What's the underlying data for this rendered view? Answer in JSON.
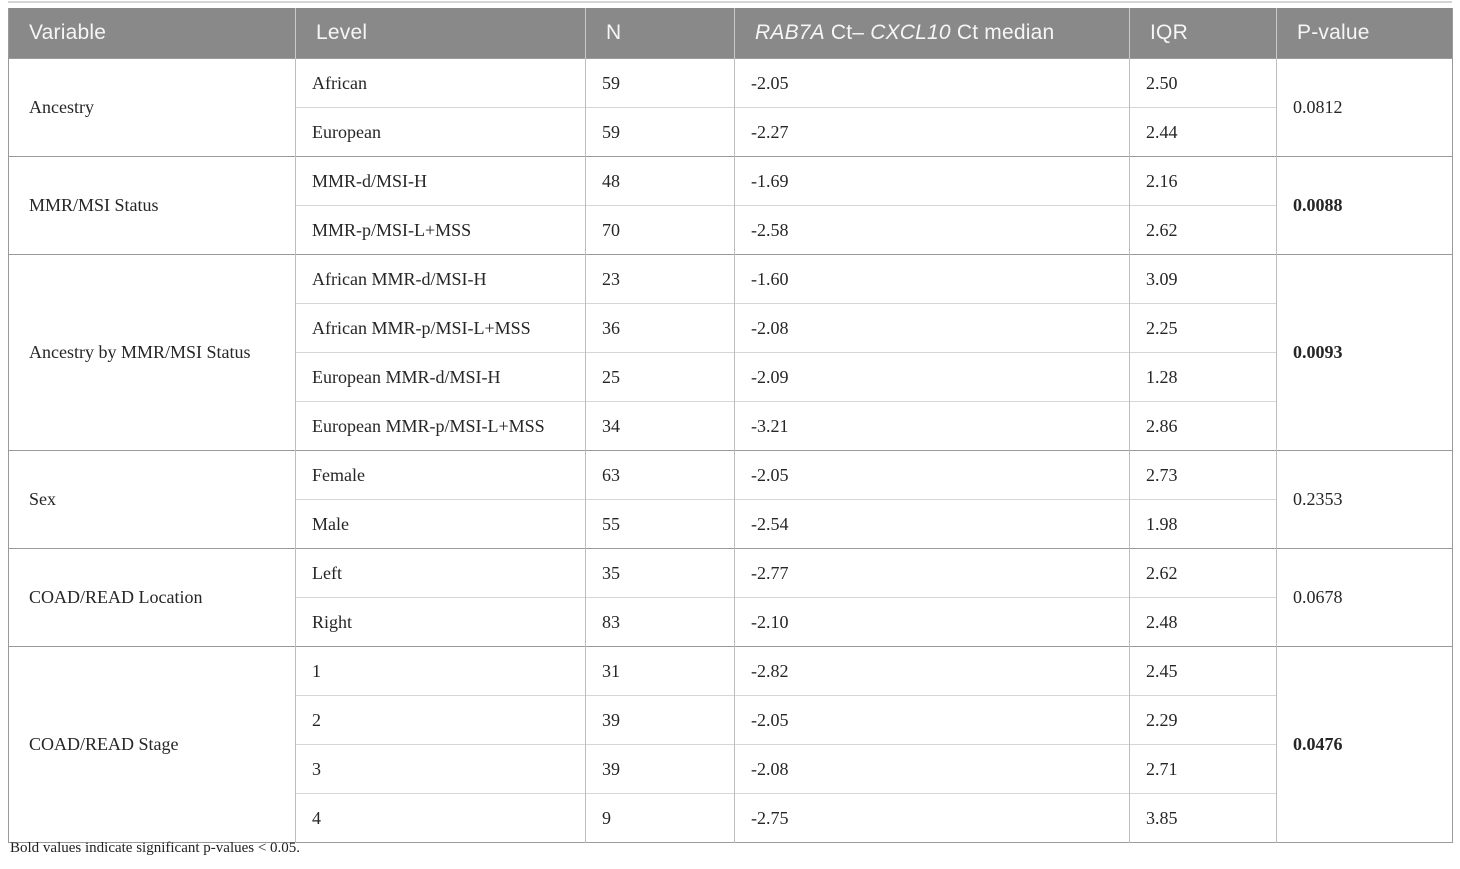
{
  "page": {
    "background": "#ffffff"
  },
  "table": {
    "header": {
      "bg_color": "#898989",
      "text_color": "#f6f6f6",
      "variable": "Variable",
      "level": "Level",
      "n": "N",
      "median_gene1": "RAB7A",
      "median_mid": " Ct– ",
      "median_gene2": "CXCL10",
      "median_tail": " Ct median",
      "iqr": "IQR",
      "p_value": "P-value"
    },
    "groups": [
      {
        "variable": "Ancestry",
        "p_value": "0.0812",
        "significant": false,
        "rows": [
          {
            "level": "African",
            "n": "59",
            "median": "-2.05",
            "iqr": "2.50"
          },
          {
            "level": "European",
            "n": "59",
            "median": "-2.27",
            "iqr": "2.44"
          }
        ]
      },
      {
        "variable": "MMR/MSI Status",
        "p_value": "0.0088",
        "significant": true,
        "rows": [
          {
            "level": "MMR-d/MSI-H",
            "n": "48",
            "median": "-1.69",
            "iqr": "2.16"
          },
          {
            "level": "MMR-p/MSI-L+MSS",
            "n": "70",
            "median": "-2.58",
            "iqr": "2.62"
          }
        ]
      },
      {
        "variable": "Ancestry by MMR/MSI Status",
        "p_value": "0.0093",
        "significant": true,
        "rows": [
          {
            "level": "African MMR-d/MSI-H",
            "n": "23",
            "median": "-1.60",
            "iqr": "3.09"
          },
          {
            "level": "African MMR-p/MSI-L+MSS",
            "n": "36",
            "median": "-2.08",
            "iqr": "2.25"
          },
          {
            "level": "European MMR-d/MSI-H",
            "n": "25",
            "median": "-2.09",
            "iqr": "1.28"
          },
          {
            "level": "European MMR-p/MSI-L+MSS",
            "n": "34",
            "median": "-3.21",
            "iqr": "2.86"
          }
        ]
      },
      {
        "variable": "Sex",
        "p_value": "0.2353",
        "significant": false,
        "rows": [
          {
            "level": "Female",
            "n": "63",
            "median": "-2.05",
            "iqr": "2.73"
          },
          {
            "level": "Male",
            "n": "55",
            "median": "-2.54",
            "iqr": "1.98"
          }
        ]
      },
      {
        "variable": "COAD/READ Location",
        "p_value": "0.0678",
        "significant": false,
        "rows": [
          {
            "level": "Left",
            "n": "35",
            "median": "-2.77",
            "iqr": "2.62"
          },
          {
            "level": "Right",
            "n": "83",
            "median": "-2.10",
            "iqr": "2.48"
          }
        ]
      },
      {
        "variable": "COAD/READ Stage",
        "p_value": "0.0476",
        "significant": true,
        "rows": [
          {
            "level": "1",
            "n": "31",
            "median": "-2.82",
            "iqr": "2.45"
          },
          {
            "level": "2",
            "n": "39",
            "median": "-2.05",
            "iqr": "2.29"
          },
          {
            "level": "3",
            "n": "39",
            "median": "-2.08",
            "iqr": "2.71"
          },
          {
            "level": "4",
            "n": "9",
            "median": "-2.75",
            "iqr": "3.85"
          }
        ]
      }
    ],
    "footnote": "Bold values indicate significant p-values < 0.05."
  }
}
